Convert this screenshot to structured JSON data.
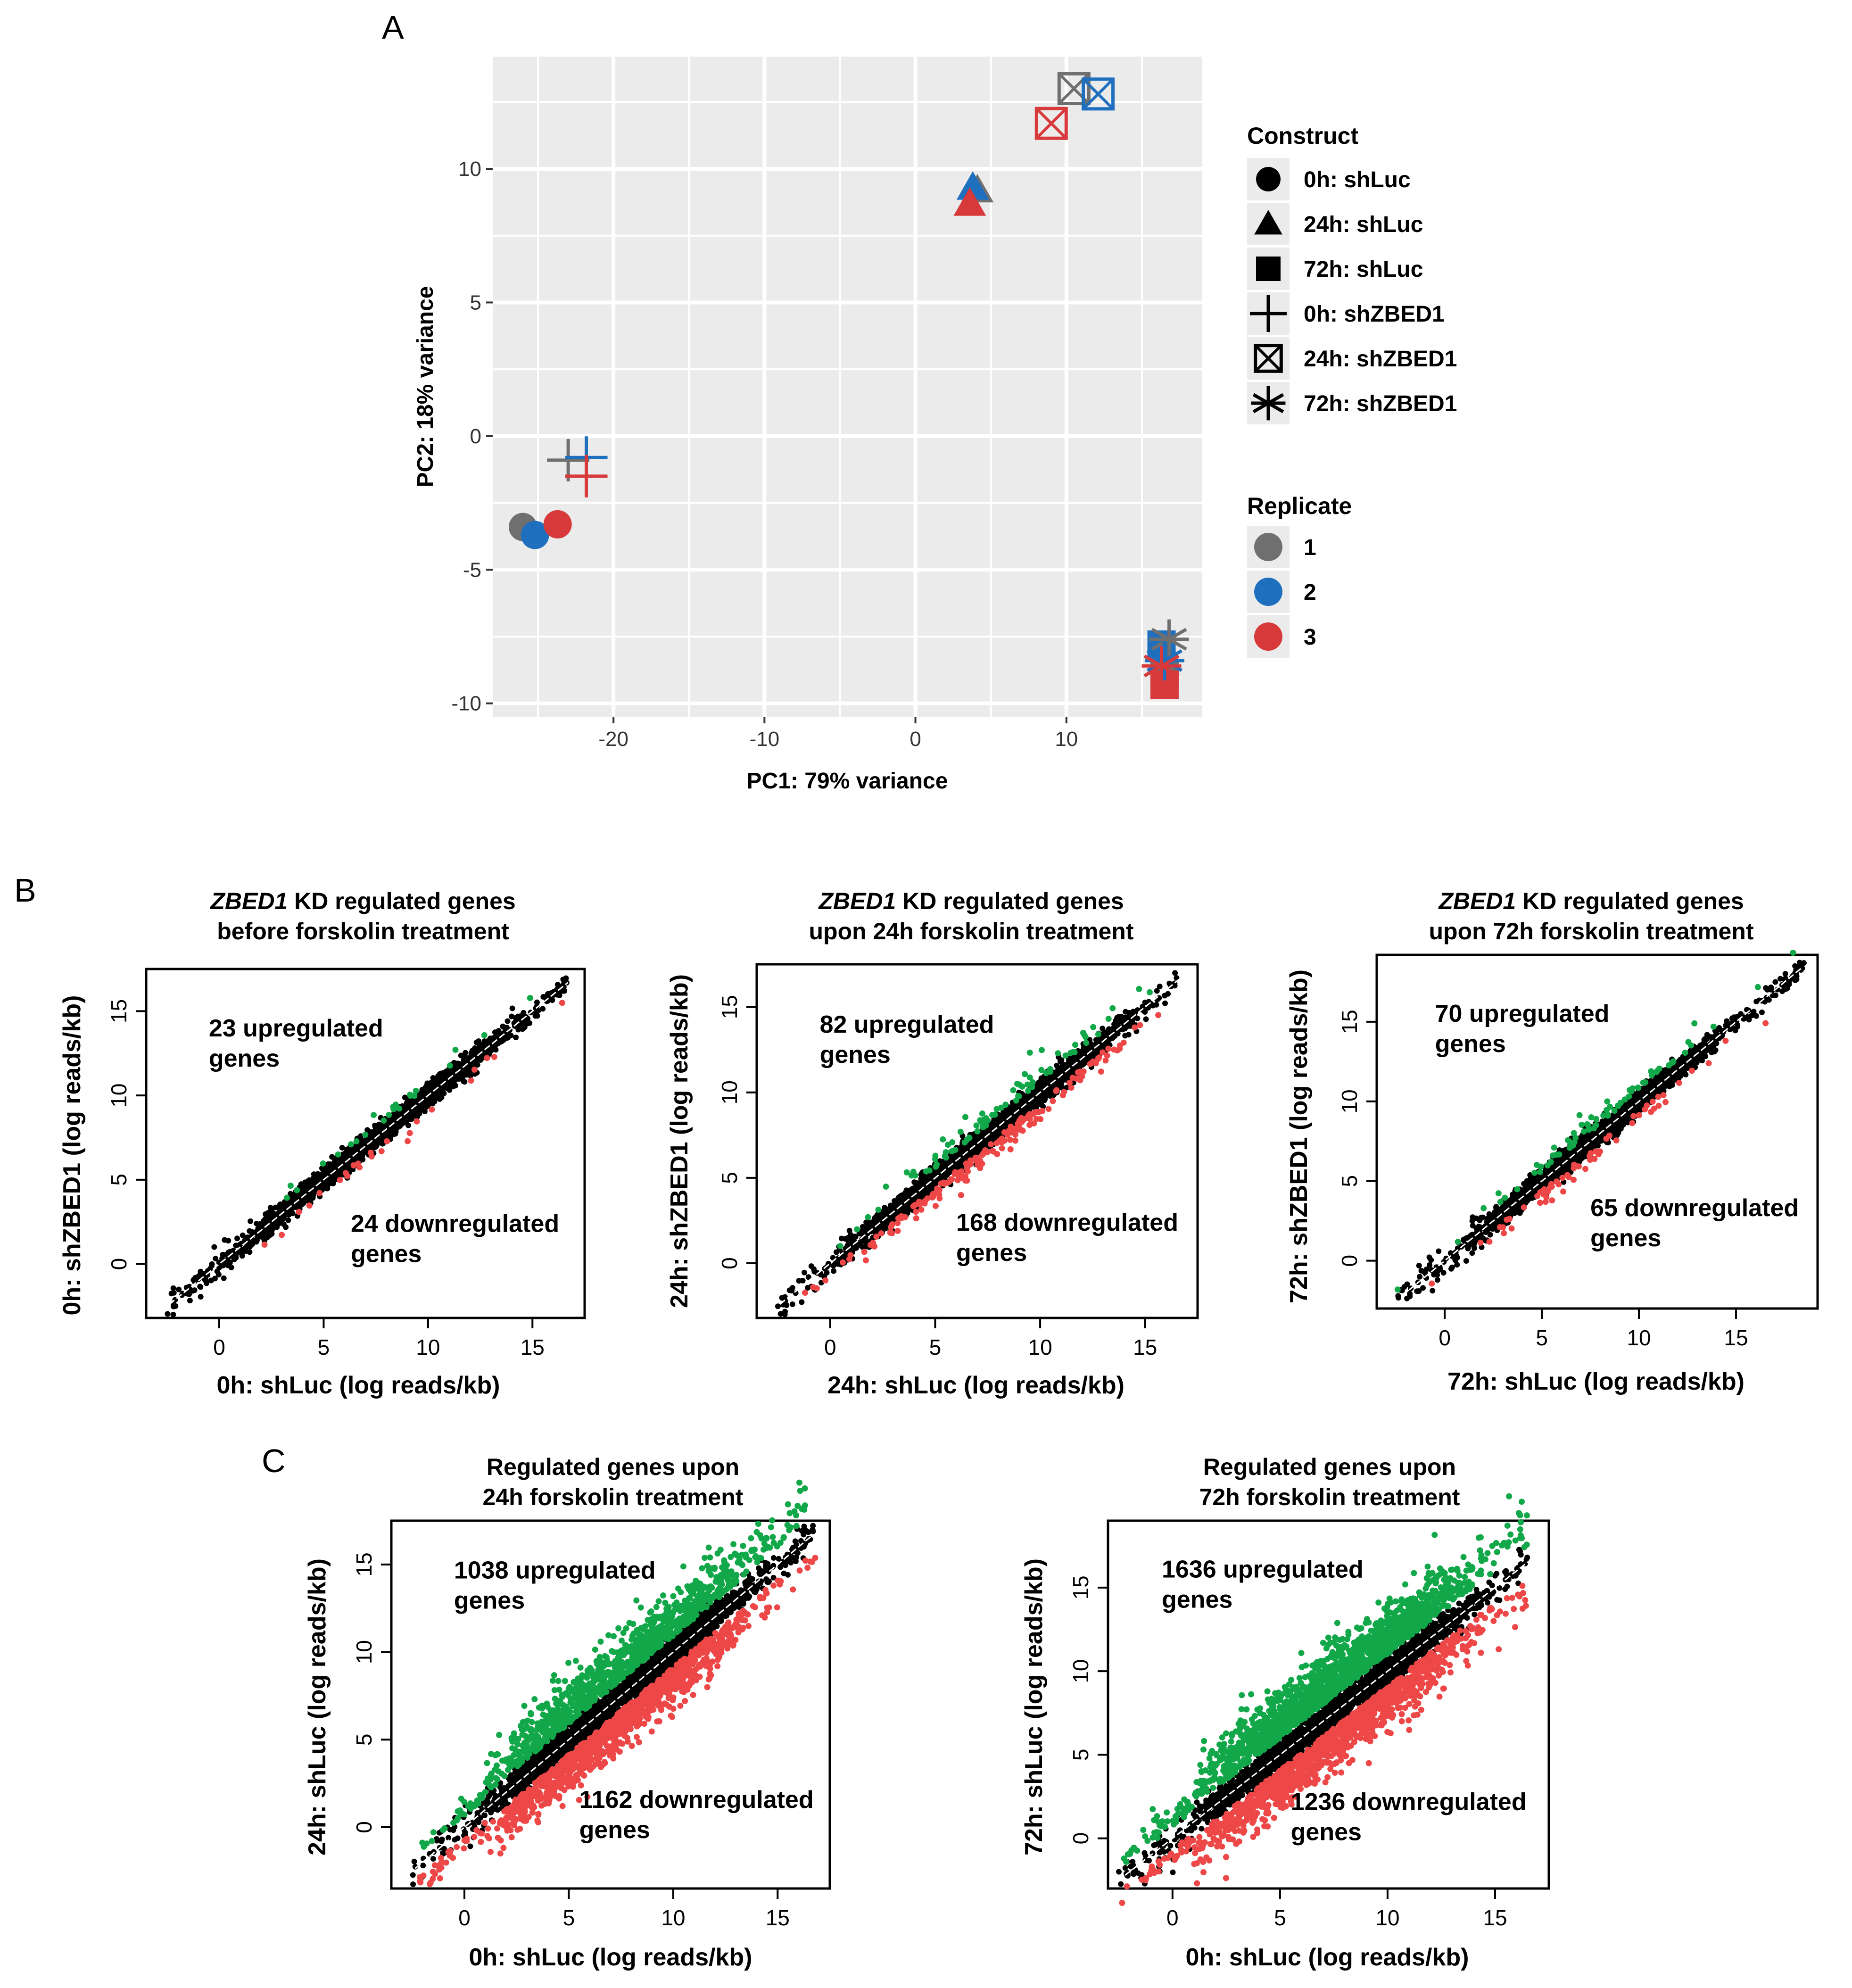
{
  "panel_labels": {
    "a": "A",
    "b": "B",
    "c": "C"
  },
  "colors": {
    "grey": "#6f6f6f",
    "blue": "#1f6fbf",
    "red": "#d8393a",
    "green": "#12a84a",
    "scatter_red": "#ee4747",
    "black": "#000000",
    "panel_bg": "#ebebeb"
  },
  "legend": {
    "construct": {
      "title": "Construct",
      "items": [
        {
          "label": "0h: shLuc",
          "shape": "circle"
        },
        {
          "label": "24h: shLuc",
          "shape": "triangle"
        },
        {
          "label": "72h: shLuc",
          "shape": "square"
        },
        {
          "label": "0h: shZBED1",
          "shape": "plus"
        },
        {
          "label": "24h: shZBED1",
          "shape": "boxx"
        },
        {
          "label": "72h: shZBED1",
          "shape": "asterisk"
        }
      ]
    },
    "replicate": {
      "title": "Replicate",
      "items": [
        {
          "label": "1",
          "color": "#6f6f6f"
        },
        {
          "label": "2",
          "color": "#1f6fbf"
        },
        {
          "label": "3",
          "color": "#d8393a"
        }
      ]
    }
  },
  "chart_data": [
    {
      "id": "pca",
      "type": "scatter",
      "title": "",
      "xlabel": "PC1: 79% variance",
      "ylabel": "PC2: 18% variance",
      "xlim": [
        -28,
        19
      ],
      "ylim": [
        -10.5,
        14.2
      ],
      "xticks": [
        -20,
        -10,
        0,
        10
      ],
      "yticks": [
        -10,
        -5,
        0,
        5,
        10
      ],
      "grid": true,
      "points": [
        {
          "x": -26.0,
          "y": -3.4,
          "construct": "0h: shLuc",
          "shape": "circle",
          "replicate": "1",
          "color": "#6f6f6f"
        },
        {
          "x": -25.2,
          "y": -3.7,
          "construct": "0h: shLuc",
          "shape": "circle",
          "replicate": "2",
          "color": "#1f6fbf"
        },
        {
          "x": -23.7,
          "y": -3.3,
          "construct": "0h: shLuc",
          "shape": "circle",
          "replicate": "3",
          "color": "#d8393a"
        },
        {
          "x": 4.1,
          "y": 9.2,
          "construct": "24h: shLuc",
          "shape": "triangle",
          "replicate": "1",
          "color": "#6f6f6f"
        },
        {
          "x": 3.8,
          "y": 9.3,
          "construct": "24h: shLuc",
          "shape": "triangle",
          "replicate": "2",
          "color": "#1f6fbf"
        },
        {
          "x": 3.6,
          "y": 8.7,
          "construct": "24h: shLuc",
          "shape": "triangle",
          "replicate": "3",
          "color": "#d8393a"
        },
        {
          "x": 16.5,
          "y": -8.9,
          "construct": "72h: shLuc",
          "shape": "square",
          "replicate": "1",
          "color": "#6f6f6f"
        },
        {
          "x": 16.3,
          "y": -7.8,
          "construct": "72h: shLuc",
          "shape": "square",
          "replicate": "2",
          "color": "#1f6fbf"
        },
        {
          "x": 16.5,
          "y": -9.3,
          "construct": "72h: shLuc",
          "shape": "square",
          "replicate": "3",
          "color": "#d8393a"
        },
        {
          "x": -23.0,
          "y": -0.9,
          "construct": "0h: shZBED1",
          "shape": "plus",
          "replicate": "1",
          "color": "#6f6f6f"
        },
        {
          "x": -21.8,
          "y": -0.8,
          "construct": "0h: shZBED1",
          "shape": "plus",
          "replicate": "2",
          "color": "#1f6fbf"
        },
        {
          "x": -21.8,
          "y": -1.5,
          "construct": "0h: shZBED1",
          "shape": "plus",
          "replicate": "3",
          "color": "#d8393a"
        },
        {
          "x": 10.5,
          "y": 13.0,
          "construct": "24h: shZBED1",
          "shape": "boxx",
          "replicate": "1",
          "color": "#6f6f6f"
        },
        {
          "x": 12.1,
          "y": 12.8,
          "construct": "24h: shZBED1",
          "shape": "boxx",
          "replicate": "2",
          "color": "#1f6fbf"
        },
        {
          "x": 9.0,
          "y": 11.7,
          "construct": "24h: shZBED1",
          "shape": "boxx",
          "replicate": "3",
          "color": "#d8393a"
        },
        {
          "x": 16.8,
          "y": -7.6,
          "construct": "72h: shZBED1",
          "shape": "asterisk",
          "replicate": "1",
          "color": "#6f6f6f"
        },
        {
          "x": 16.5,
          "y": -8.4,
          "construct": "72h: shZBED1",
          "shape": "asterisk",
          "replicate": "2",
          "color": "#1f6fbf"
        },
        {
          "x": 16.3,
          "y": -8.6,
          "construct": "72h: shZBED1",
          "shape": "asterisk",
          "replicate": "3",
          "color": "#d8393a"
        }
      ]
    },
    {
      "id": "b1",
      "type": "scatter",
      "title_italic": "ZBED1",
      "title_rest": " KD regulated genes",
      "title_line2": "before forskolin treatment",
      "xlabel": "0h: shLuc (log reads/kb)",
      "ylabel": "0h: shZBED1 (log reads/kb)",
      "xlim": [
        -3.5,
        17.5
      ],
      "ylim": [
        -3.2,
        17.5
      ],
      "xticks": [
        0,
        5,
        10,
        15
      ],
      "yticks": [
        0,
        5,
        10,
        15
      ],
      "annotations": [
        {
          "line1": "23 upregulated",
          "line2": "genes",
          "ax": -0.5,
          "ay": 13.5
        },
        {
          "line1": "24 downregulated",
          "line2": "genes",
          "ax": 6.3,
          "ay": 1.9
        }
      ],
      "upregulated": 23,
      "downregulated": 24,
      "density": {
        "min": -2.5,
        "max": 16.8,
        "n_black": 2400,
        "spread": 0.32,
        "n_green": 23,
        "n_red": 24,
        "green_offset": 0.55,
        "red_offset": 0.55
      }
    },
    {
      "id": "b2",
      "type": "scatter",
      "title_italic": "ZBED1",
      "title_rest": " KD regulated genes",
      "title_line2": "upon 24h forskolin treatment",
      "xlabel": "24h: shLuc (log reads/kb)",
      "ylabel": "24h: shZBED1 (log reads/kb)",
      "xlim": [
        -3.5,
        17.5
      ],
      "ylim": [
        -3.2,
        17.5
      ],
      "xticks": [
        0,
        5,
        10,
        15
      ],
      "yticks": [
        0,
        5,
        10,
        15
      ],
      "annotations": [
        {
          "line1": "82 upregulated",
          "line2": "genes",
          "ax": -0.5,
          "ay": 13.5
        },
        {
          "line1": "168 downregulated",
          "line2": "genes",
          "ax": 6.0,
          "ay": 1.9
        }
      ],
      "upregulated": 82,
      "downregulated": 168,
      "density": {
        "min": -2.5,
        "max": 16.5,
        "n_black": 2400,
        "spread": 0.34,
        "n_green": 82,
        "n_red": 168,
        "green_offset": 0.6,
        "red_offset": 0.55
      }
    },
    {
      "id": "b3",
      "type": "scatter",
      "title_italic": "ZBED1",
      "title_rest": " KD regulated genes",
      "title_line2": "upon 72h forskolin treatment",
      "xlabel": "72h: shLuc (log reads/kb)",
      "ylabel": "72h: shZBED1 (log reads/kb)",
      "xlim": [
        -3.5,
        19.2
      ],
      "ylim": [
        -3.0,
        19.2
      ],
      "xticks": [
        0,
        5,
        10,
        15
      ],
      "yticks": [
        0,
        5,
        10,
        15
      ],
      "annotations": [
        {
          "line1": "70 upregulated",
          "line2": "genes",
          "ax": -0.5,
          "ay": 15.0
        },
        {
          "line1": "65 downregulated",
          "line2": "genes",
          "ax": 7.5,
          "ay": 2.8
        }
      ],
      "upregulated": 70,
      "downregulated": 65,
      "density": {
        "min": -2.5,
        "max": 18.5,
        "n_black": 2400,
        "spread": 0.34,
        "n_green": 70,
        "n_red": 65,
        "green_offset": 0.6,
        "red_offset": 0.55
      }
    },
    {
      "id": "c1",
      "type": "scatter",
      "title_line1": "Regulated genes upon",
      "title_line2": "24h forskolin treatment",
      "xlabel": "0h: shLuc (log reads/kb)",
      "ylabel": "24h: shLuc (log reads/kb)",
      "xlim": [
        -3.5,
        17.5
      ],
      "ylim": [
        -3.5,
        17.5
      ],
      "xticks": [
        0,
        5,
        10,
        15
      ],
      "yticks": [
        0,
        5,
        10,
        15
      ],
      "annotations": [
        {
          "line1": "1038 upregulated",
          "line2": "genes",
          "ax": -0.5,
          "ay": 14.2
        },
        {
          "line1": "1162 downregulated",
          "line2": "genes",
          "ax": 5.5,
          "ay": 1.1
        }
      ],
      "upregulated": 1038,
      "downregulated": 1162,
      "density": {
        "min": -2.5,
        "max": 16.8,
        "n_black": 2600,
        "spread": 0.4,
        "n_green": 1038,
        "n_red": 1162,
        "green_offset": 1.3,
        "red_offset": 1.1
      }
    },
    {
      "id": "c2",
      "type": "scatter",
      "title_line1": "Regulated genes upon",
      "title_line2": "72h forskolin treatment",
      "xlabel": "0h: shLuc (log reads/kb)",
      "ylabel": "72h: shLuc (log reads/kb)",
      "xlim": [
        -3.0,
        17.5
      ],
      "ylim": [
        -3.0,
        19.0
      ],
      "xticks": [
        0,
        5,
        10,
        15
      ],
      "yticks": [
        0,
        5,
        10,
        15
      ],
      "annotations": [
        {
          "line1": "1636 upregulated",
          "line2": "genes",
          "ax": -0.5,
          "ay": 15.6
        },
        {
          "line1": "1236 downregulated",
          "line2": "genes",
          "ax": 5.5,
          "ay": 1.7
        }
      ],
      "upregulated": 1636,
      "downregulated": 1236,
      "density": {
        "min": -2.5,
        "max": 16.5,
        "n_black": 2600,
        "spread": 0.42,
        "n_green": 1636,
        "n_red": 1236,
        "green_offset": 1.5,
        "red_offset": 1.2
      }
    }
  ]
}
